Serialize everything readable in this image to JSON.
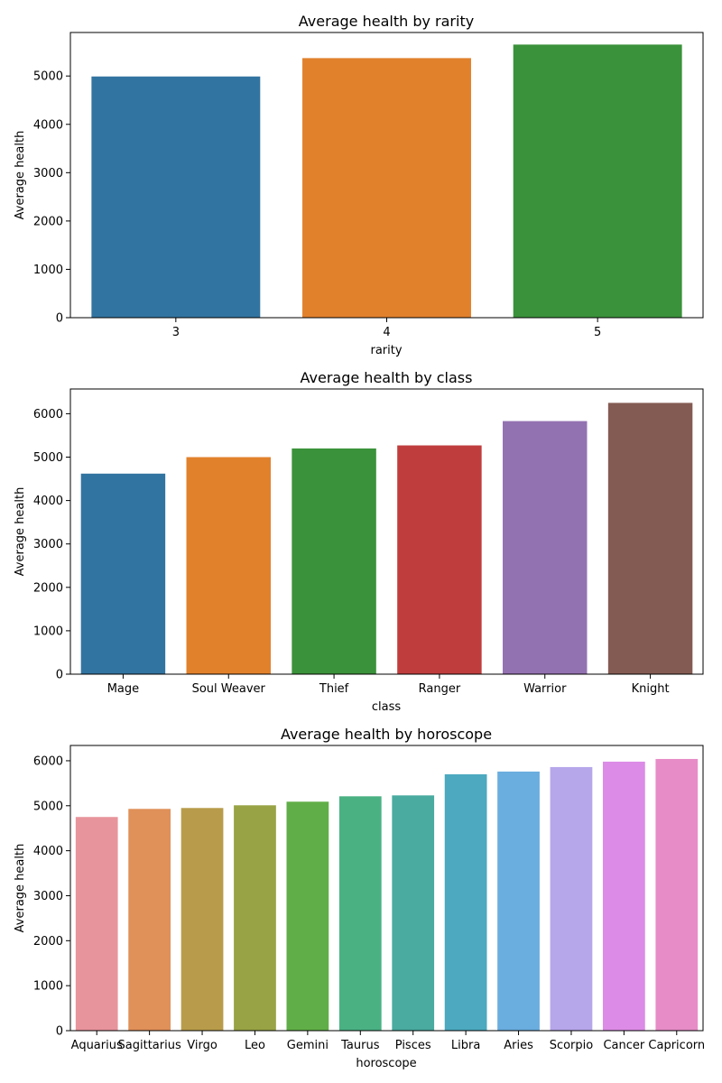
{
  "chart_data": [
    {
      "type": "bar",
      "title": "Average health by rarity",
      "xlabel": "rarity",
      "ylabel": "Average health",
      "categories": [
        "3",
        "4",
        "5"
      ],
      "values": [
        4990,
        5370,
        5650
      ],
      "ylim": [
        0,
        5900
      ],
      "yticks": [
        0,
        1000,
        2000,
        3000,
        4000,
        5000
      ],
      "colors": [
        "#3274a1",
        "#e1812c",
        "#3a923a"
      ],
      "grid": false,
      "legend": "none"
    },
    {
      "type": "bar",
      "title": "Average health by class",
      "xlabel": "class",
      "ylabel": "Average health",
      "categories": [
        "Mage",
        "Soul Weaver",
        "Thief",
        "Ranger",
        "Warrior",
        "Knight"
      ],
      "values": [
        4620,
        5000,
        5200,
        5270,
        5830,
        6250
      ],
      "ylim": [
        0,
        6570
      ],
      "yticks": [
        0,
        1000,
        2000,
        3000,
        4000,
        5000,
        6000
      ],
      "colors": [
        "#3274a1",
        "#e1812c",
        "#3a923a",
        "#c03d3e",
        "#9372b2",
        "#845b53"
      ],
      "grid": false,
      "legend": "none"
    },
    {
      "type": "bar",
      "title": "Average health by horoscope",
      "xlabel": "horoscope",
      "ylabel": "Average health",
      "categories": [
        "Aquarius",
        "Sagittarius",
        "Virgo",
        "Leo",
        "Gemini",
        "Taurus",
        "Pisces",
        "Libra",
        "Aries",
        "Scorpio",
        "Cancer",
        "Capricorn"
      ],
      "values": [
        4750,
        4930,
        4950,
        5010,
        5090,
        5210,
        5230,
        5700,
        5760,
        5860,
        5980,
        6040
      ],
      "ylim": [
        0,
        6340
      ],
      "yticks": [
        0,
        1000,
        2000,
        3000,
        4000,
        5000,
        6000
      ],
      "colors": [
        "#e8949c",
        "#e09059",
        "#b89c4b",
        "#98a345",
        "#60ae47",
        "#4ab183",
        "#4aaba0",
        "#4ca9bf",
        "#6aaddf",
        "#b6a6ea",
        "#dc8be6",
        "#e78cc7"
      ],
      "grid": false,
      "legend": "none"
    }
  ]
}
